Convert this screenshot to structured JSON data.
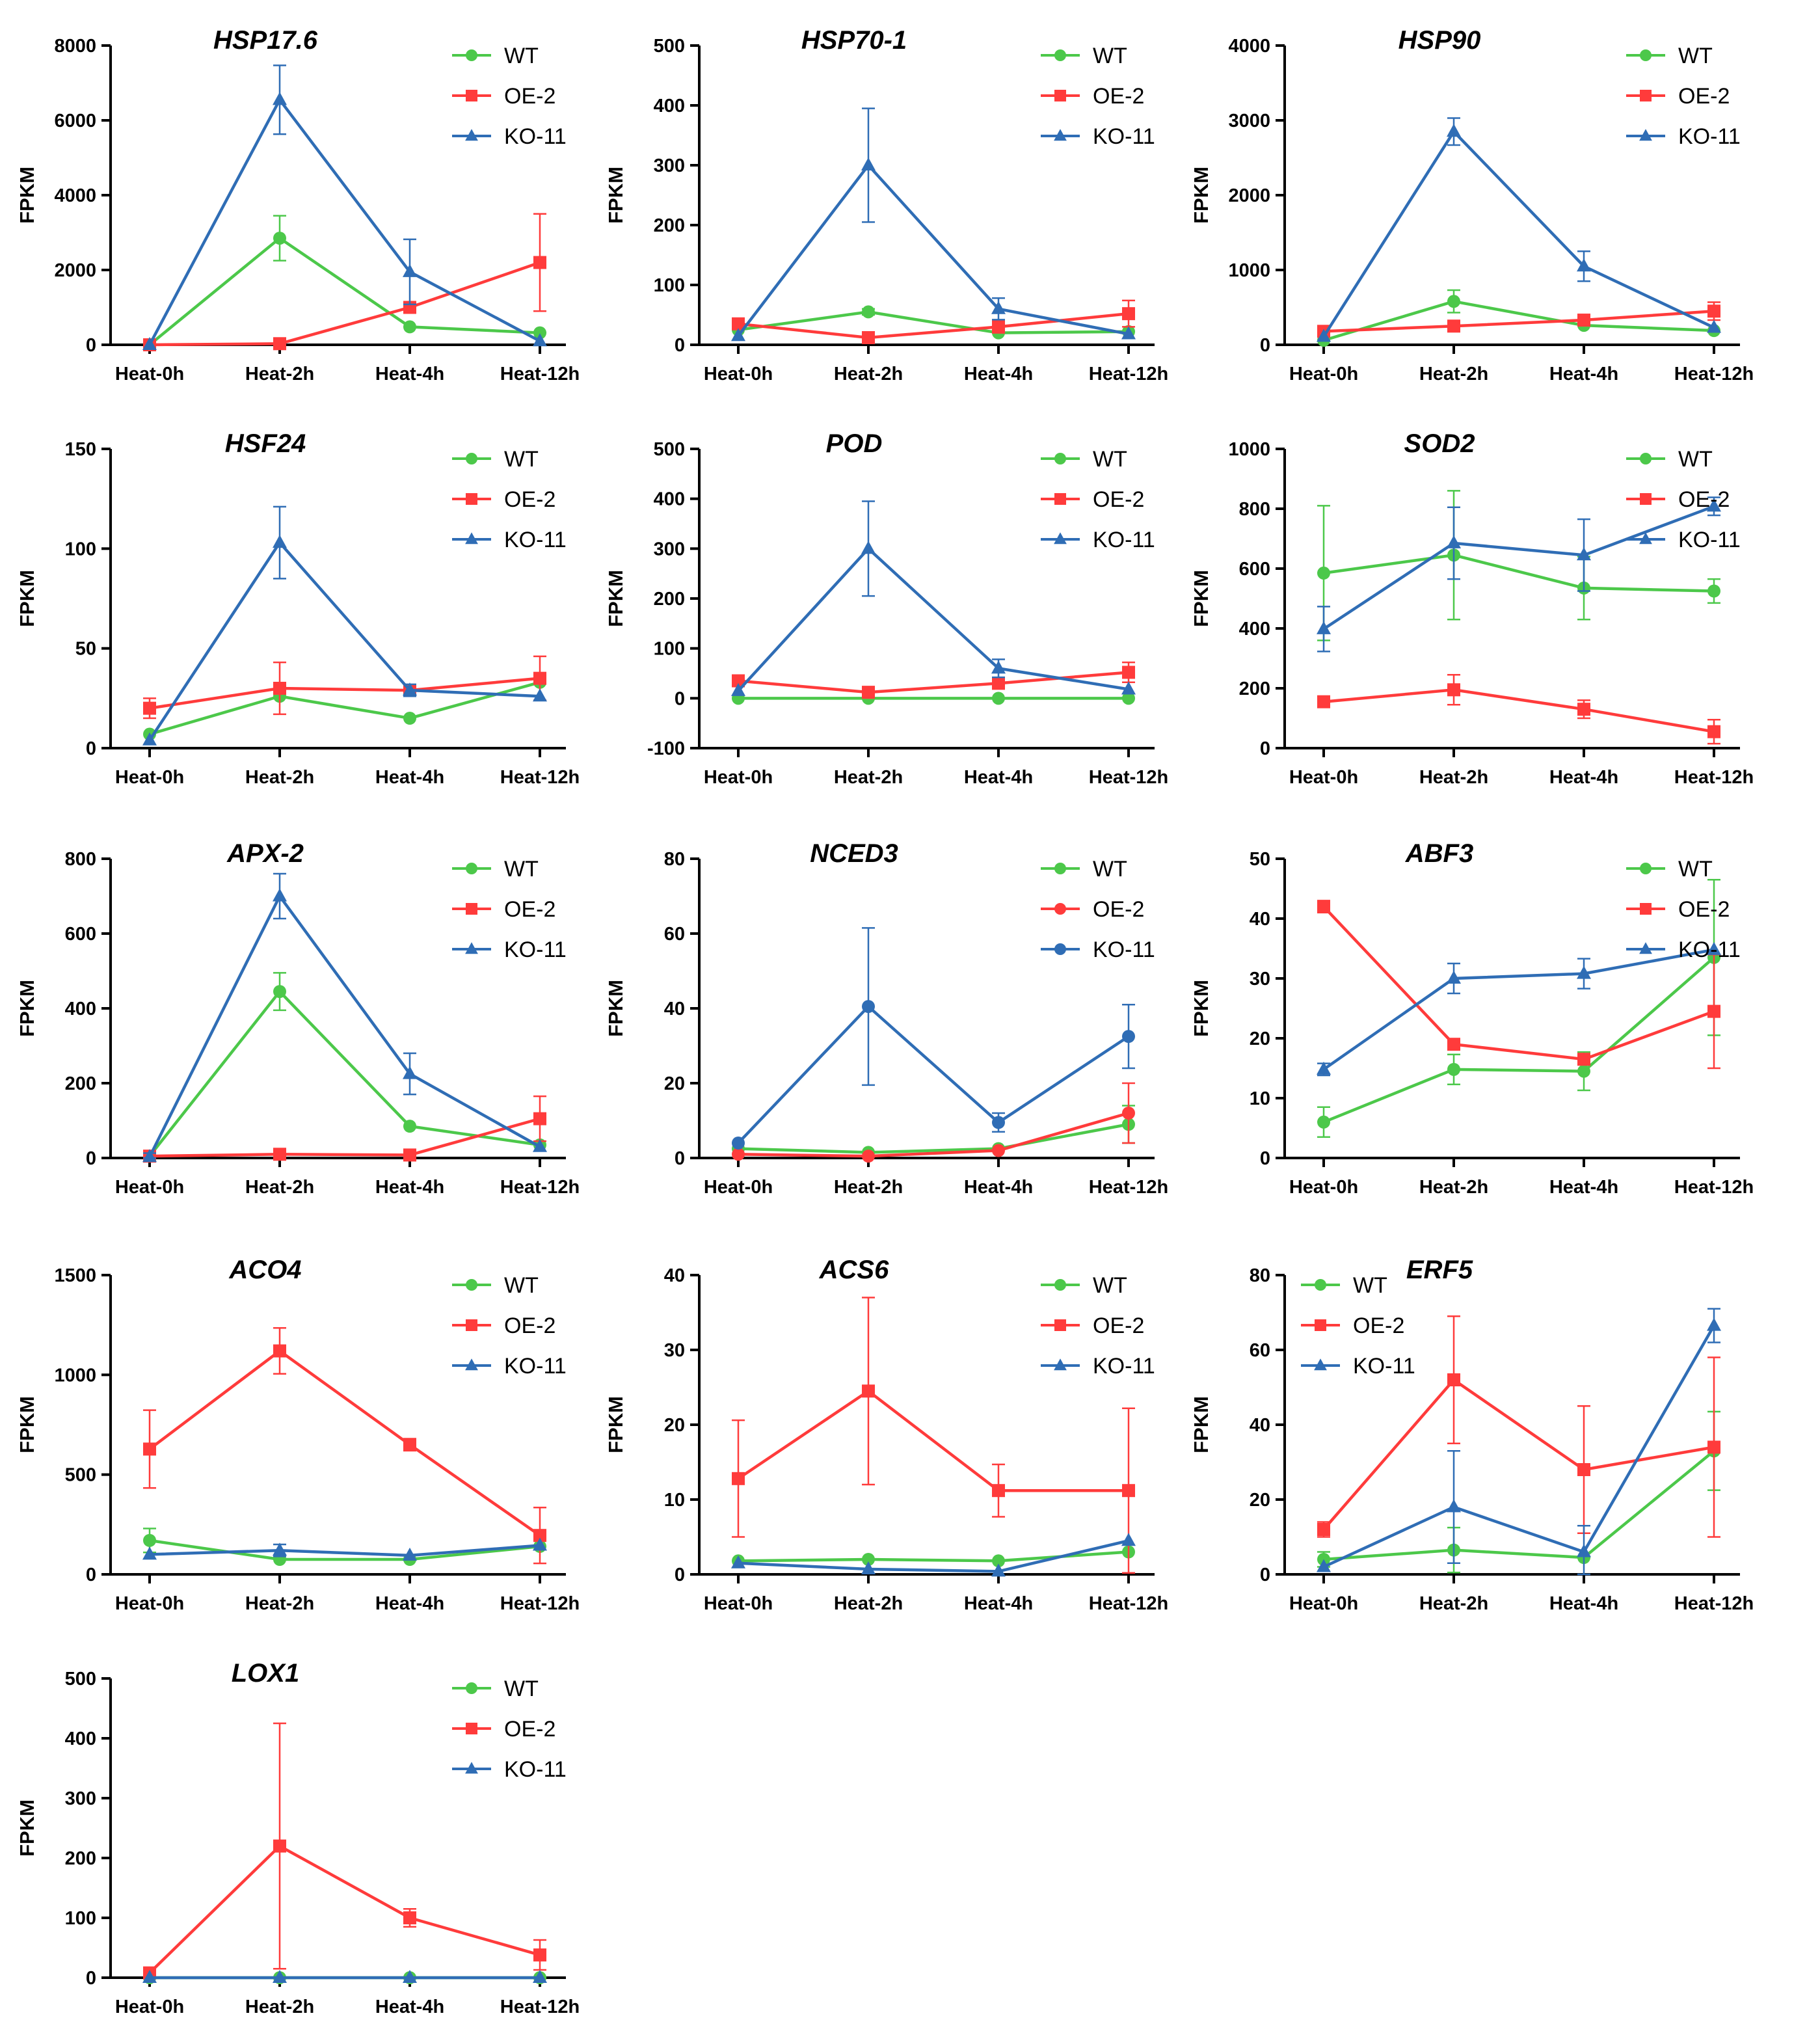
{
  "chart_data": [
    {
      "type": "line",
      "title": "HSP17.6",
      "xlabel": "",
      "ylabel": "FPKM",
      "ylim": [
        0,
        8000
      ],
      "yticks": [
        0,
        2000,
        4000,
        6000,
        8000
      ],
      "legend_position": "top-right",
      "categories": [
        "Heat-0h",
        "Heat-2h",
        "Heat-4h",
        "Heat-12h"
      ],
      "series": [
        {
          "name": "WT",
          "color": "#4cc84a",
          "marker": "circle",
          "values": [
            0,
            2850,
            480,
            320
          ],
          "errors": [
            0,
            600,
            0,
            0
          ]
        },
        {
          "name": "OE-2",
          "color": "#ff3b3b",
          "marker": "square",
          "values": [
            0,
            30,
            1000,
            2200
          ],
          "errors": [
            0,
            0,
            0,
            1300
          ]
        },
        {
          "name": "KO-11",
          "color": "#2f6db5",
          "marker": "triangle",
          "values": [
            0,
            6550,
            1950,
            100
          ],
          "errors": [
            0,
            920,
            870,
            0
          ]
        }
      ]
    },
    {
      "type": "line",
      "title": "HSP70-1",
      "xlabel": "",
      "ylabel": "FPKM",
      "ylim": [
        0,
        500
      ],
      "yticks": [
        0,
        100,
        200,
        300,
        400,
        500
      ],
      "legend_position": "top-right",
      "categories": [
        "Heat-0h",
        "Heat-2h",
        "Heat-4h",
        "Heat-12h"
      ],
      "series": [
        {
          "name": "WT",
          "color": "#4cc84a",
          "marker": "circle",
          "values": [
            25,
            55,
            20,
            22
          ],
          "errors": [
            0,
            5,
            0,
            0
          ]
        },
        {
          "name": "OE-2",
          "color": "#ff3b3b",
          "marker": "square",
          "values": [
            35,
            12,
            30,
            52
          ],
          "errors": [
            0,
            0,
            10,
            22
          ]
        },
        {
          "name": "KO-11",
          "color": "#2f6db5",
          "marker": "triangle",
          "values": [
            15,
            300,
            60,
            18
          ],
          "errors": [
            0,
            95,
            18,
            0
          ]
        }
      ]
    },
    {
      "type": "line",
      "title": "HSP90",
      "xlabel": "",
      "ylabel": "FPKM",
      "ylim": [
        0,
        4000
      ],
      "yticks": [
        0,
        1000,
        2000,
        3000,
        4000
      ],
      "legend_position": "top-right",
      "categories": [
        "Heat-0h",
        "Heat-2h",
        "Heat-4h",
        "Heat-12h"
      ],
      "series": [
        {
          "name": "WT",
          "color": "#4cc84a",
          "marker": "circle",
          "values": [
            60,
            580,
            260,
            190
          ],
          "errors": [
            0,
            150,
            0,
            0
          ]
        },
        {
          "name": "OE-2",
          "color": "#ff3b3b",
          "marker": "square",
          "values": [
            180,
            250,
            330,
            450
          ],
          "errors": [
            0,
            0,
            0,
            120
          ]
        },
        {
          "name": "KO-11",
          "color": "#2f6db5",
          "marker": "triangle",
          "values": [
            110,
            2850,
            1050,
            230
          ],
          "errors": [
            0,
            180,
            200,
            0
          ]
        }
      ]
    },
    {
      "type": "line",
      "title": "HSF24",
      "xlabel": "",
      "ylabel": "FPKM",
      "ylim": [
        0,
        150
      ],
      "yticks": [
        0,
        50,
        100,
        150
      ],
      "legend_position": "top-right",
      "categories": [
        "Heat-0h",
        "Heat-2h",
        "Heat-4h",
        "Heat-12h"
      ],
      "series": [
        {
          "name": "WT",
          "color": "#4cc84a",
          "marker": "circle",
          "values": [
            7,
            26,
            15,
            33
          ],
          "errors": [
            0,
            0,
            0,
            0
          ]
        },
        {
          "name": "OE-2",
          "color": "#ff3b3b",
          "marker": "square",
          "values": [
            20,
            30,
            29,
            35
          ],
          "errors": [
            5,
            13,
            0,
            11
          ]
        },
        {
          "name": "KO-11",
          "color": "#2f6db5",
          "marker": "triangle",
          "values": [
            4,
            103,
            29,
            26
          ],
          "errors": [
            0,
            18,
            3,
            0
          ]
        }
      ]
    },
    {
      "type": "line",
      "title": "POD",
      "xlabel": "",
      "ylabel": "FPKM",
      "ylim": [
        -100,
        500
      ],
      "yticks": [
        -100,
        0,
        100,
        200,
        300,
        400,
        500
      ],
      "legend_position": "top-right",
      "categories": [
        "Heat-0h",
        "Heat-2h",
        "Heat-4h",
        "Heat-12h"
      ],
      "series": [
        {
          "name": "WT",
          "color": "#4cc84a",
          "marker": "circle",
          "values": [
            0,
            0,
            0,
            0
          ],
          "errors": [
            0,
            0,
            0,
            0
          ]
        },
        {
          "name": "OE-2",
          "color": "#ff3b3b",
          "marker": "square",
          "values": [
            35,
            12,
            30,
            52
          ],
          "errors": [
            0,
            0,
            0,
            20
          ]
        },
        {
          "name": "KO-11",
          "color": "#2f6db5",
          "marker": "triangle",
          "values": [
            15,
            300,
            60,
            18
          ],
          "errors": [
            0,
            95,
            18,
            0
          ]
        }
      ]
    },
    {
      "type": "line",
      "title": "SOD2",
      "xlabel": "",
      "ylabel": "FPKM",
      "ylim": [
        0,
        1000
      ],
      "yticks": [
        0,
        200,
        400,
        600,
        800,
        1000
      ],
      "legend_position": "top-right",
      "categories": [
        "Heat-0h",
        "Heat-2h",
        "Heat-4h",
        "Heat-12h"
      ],
      "series": [
        {
          "name": "WT",
          "color": "#4cc84a",
          "marker": "circle",
          "values": [
            585,
            645,
            535,
            525
          ],
          "errors": [
            225,
            215,
            105,
            40
          ]
        },
        {
          "name": "OE-2",
          "color": "#ff3b3b",
          "marker": "square",
          "values": [
            155,
            195,
            130,
            55
          ],
          "errors": [
            0,
            50,
            30,
            40
          ]
        },
        {
          "name": "KO-11",
          "color": "#2f6db5",
          "marker": "triangle",
          "values": [
            398,
            685,
            645,
            808
          ],
          "errors": [
            75,
            120,
            120,
            30
          ]
        }
      ]
    },
    {
      "type": "line",
      "title": "APX-2",
      "xlabel": "",
      "ylabel": "FPKM",
      "ylim": [
        0,
        800
      ],
      "yticks": [
        0,
        200,
        400,
        600,
        800
      ],
      "legend_position": "top-right",
      "categories": [
        "Heat-0h",
        "Heat-2h",
        "Heat-4h",
        "Heat-12h"
      ],
      "series": [
        {
          "name": "WT",
          "color": "#4cc84a",
          "marker": "circle",
          "values": [
            5,
            445,
            85,
            35
          ],
          "errors": [
            0,
            50,
            0,
            0
          ]
        },
        {
          "name": "OE-2",
          "color": "#ff3b3b",
          "marker": "square",
          "values": [
            5,
            10,
            8,
            105
          ],
          "errors": [
            0,
            0,
            0,
            60
          ]
        },
        {
          "name": "KO-11",
          "color": "#2f6db5",
          "marker": "triangle",
          "values": [
            3,
            700,
            225,
            30
          ],
          "errors": [
            10,
            60,
            55,
            0
          ]
        }
      ]
    },
    {
      "type": "line",
      "title": "NCED3",
      "xlabel": "",
      "ylabel": "FPKM",
      "ylim": [
        0,
        80
      ],
      "yticks": [
        0,
        20,
        40,
        60,
        80
      ],
      "legend_position": "top-right",
      "categories": [
        "Heat-0h",
        "Heat-2h",
        "Heat-4h",
        "Heat-12h"
      ],
      "series": [
        {
          "name": "WT",
          "color": "#4cc84a",
          "marker": "circle",
          "values": [
            2.5,
            1.5,
            2.5,
            9
          ],
          "errors": [
            0,
            0,
            0,
            5
          ]
        },
        {
          "name": "OE-2",
          "color": "#ff3b3b",
          "marker": "circle",
          "values": [
            1,
            0.5,
            2,
            12
          ],
          "errors": [
            0,
            0,
            0,
            8
          ]
        },
        {
          "name": "KO-11",
          "color": "#2f6db5",
          "marker": "circle",
          "values": [
            4,
            40.5,
            9.5,
            32.5
          ],
          "errors": [
            0,
            21,
            2.5,
            8.5
          ]
        }
      ]
    },
    {
      "type": "line",
      "title": "ABF3",
      "xlabel": "",
      "ylabel": "FPKM",
      "ylim": [
        0,
        50
      ],
      "yticks": [
        0,
        10,
        20,
        30,
        40,
        50
      ],
      "legend_position": "top-right",
      "categories": [
        "Heat-0h",
        "Heat-2h",
        "Heat-4h",
        "Heat-12h"
      ],
      "series": [
        {
          "name": "WT",
          "color": "#4cc84a",
          "marker": "circle",
          "values": [
            6,
            14.8,
            14.5,
            33.5
          ],
          "errors": [
            2.5,
            2.5,
            3.2,
            13
          ]
        },
        {
          "name": "OE-2",
          "color": "#ff3b3b",
          "marker": "square",
          "values": [
            42,
            19,
            16.5,
            24.5
          ],
          "errors": [
            1,
            0,
            0,
            9.5
          ]
        },
        {
          "name": "KO-11",
          "color": "#2f6db5",
          "marker": "triangle",
          "values": [
            14.8,
            30,
            30.8,
            34.8
          ],
          "errors": [
            1,
            2.5,
            2.5,
            0
          ]
        }
      ]
    },
    {
      "type": "line",
      "title": "ACO4",
      "xlabel": "",
      "ylabel": "FPKM",
      "ylim": [
        0,
        1500
      ],
      "yticks": [
        0,
        500,
        1000,
        1500
      ],
      "legend_position": "top-right",
      "categories": [
        "Heat-0h",
        "Heat-2h",
        "Heat-4h",
        "Heat-12h"
      ],
      "series": [
        {
          "name": "WT",
          "color": "#4cc84a",
          "marker": "circle",
          "values": [
            170,
            75,
            75,
            140
          ],
          "errors": [
            60,
            0,
            0,
            0
          ]
        },
        {
          "name": "OE-2",
          "color": "#ff3b3b",
          "marker": "square",
          "values": [
            628,
            1120,
            650,
            195
          ],
          "errors": [
            195,
            115,
            30,
            140
          ]
        },
        {
          "name": "KO-11",
          "color": "#2f6db5",
          "marker": "triangle",
          "values": [
            100,
            120,
            95,
            145
          ],
          "errors": [
            0,
            30,
            0,
            0
          ]
        }
      ]
    },
    {
      "type": "line",
      "title": "ACS6",
      "xlabel": "",
      "ylabel": "FPKM",
      "ylim": [
        0,
        40
      ],
      "yticks": [
        0,
        10,
        20,
        30,
        40
      ],
      "legend_position": "top-right",
      "categories": [
        "Heat-0h",
        "Heat-2h",
        "Heat-4h",
        "Heat-12h"
      ],
      "series": [
        {
          "name": "WT",
          "color": "#4cc84a",
          "marker": "circle",
          "values": [
            1.8,
            2,
            1.8,
            3
          ],
          "errors": [
            0,
            0,
            0,
            0
          ]
        },
        {
          "name": "OE-2",
          "color": "#ff3b3b",
          "marker": "square",
          "values": [
            12.8,
            24.5,
            11.2,
            11.2
          ],
          "errors": [
            7.8,
            12.5,
            3.5,
            11
          ]
        },
        {
          "name": "KO-11",
          "color": "#2f6db5",
          "marker": "triangle",
          "values": [
            1.5,
            0.7,
            0.4,
            4.5
          ],
          "errors": [
            0,
            0,
            0,
            0
          ]
        }
      ]
    },
    {
      "type": "line",
      "title": "ERF5",
      "xlabel": "",
      "ylabel": "FPKM",
      "ylim": [
        0,
        80
      ],
      "yticks": [
        0,
        20,
        40,
        60,
        80
      ],
      "legend_position": "top-left",
      "categories": [
        "Heat-0h",
        "Heat-2h",
        "Heat-4h",
        "Heat-12h"
      ],
      "series": [
        {
          "name": "WT",
          "color": "#4cc84a",
          "marker": "circle",
          "values": [
            4,
            6.5,
            4.5,
            33
          ],
          "errors": [
            2,
            6,
            0,
            10.5
          ]
        },
        {
          "name": "OE-2",
          "color": "#ff3b3b",
          "marker": "square",
          "values": [
            12,
            52,
            28,
            34
          ],
          "errors": [
            2,
            17,
            17,
            24
          ]
        },
        {
          "name": "KO-11",
          "color": "#2f6db5",
          "marker": "triangle",
          "values": [
            2,
            18,
            6,
            66.5
          ],
          "errors": [
            0,
            15,
            7,
            4.5
          ]
        }
      ]
    },
    {
      "type": "line",
      "title": "LOX1",
      "xlabel": "",
      "ylabel": "FPKM",
      "ylim": [
        0,
        500
      ],
      "yticks": [
        0,
        100,
        200,
        300,
        400,
        500
      ],
      "legend_position": "top-right",
      "categories": [
        "Heat-0h",
        "Heat-2h",
        "Heat-4h",
        "Heat-12h"
      ],
      "series": [
        {
          "name": "WT",
          "color": "#4cc84a",
          "marker": "circle",
          "values": [
            0,
            0,
            0,
            0
          ],
          "errors": [
            0,
            0,
            0,
            0
          ]
        },
        {
          "name": "OE-2",
          "color": "#ff3b3b",
          "marker": "square",
          "values": [
            8,
            220,
            100,
            38
          ],
          "errors": [
            0,
            205,
            15,
            25
          ]
        },
        {
          "name": "KO-11",
          "color": "#2f6db5",
          "marker": "triangle",
          "values": [
            0,
            0,
            0,
            0
          ],
          "errors": [
            0,
            0,
            0,
            0
          ]
        }
      ]
    }
  ]
}
